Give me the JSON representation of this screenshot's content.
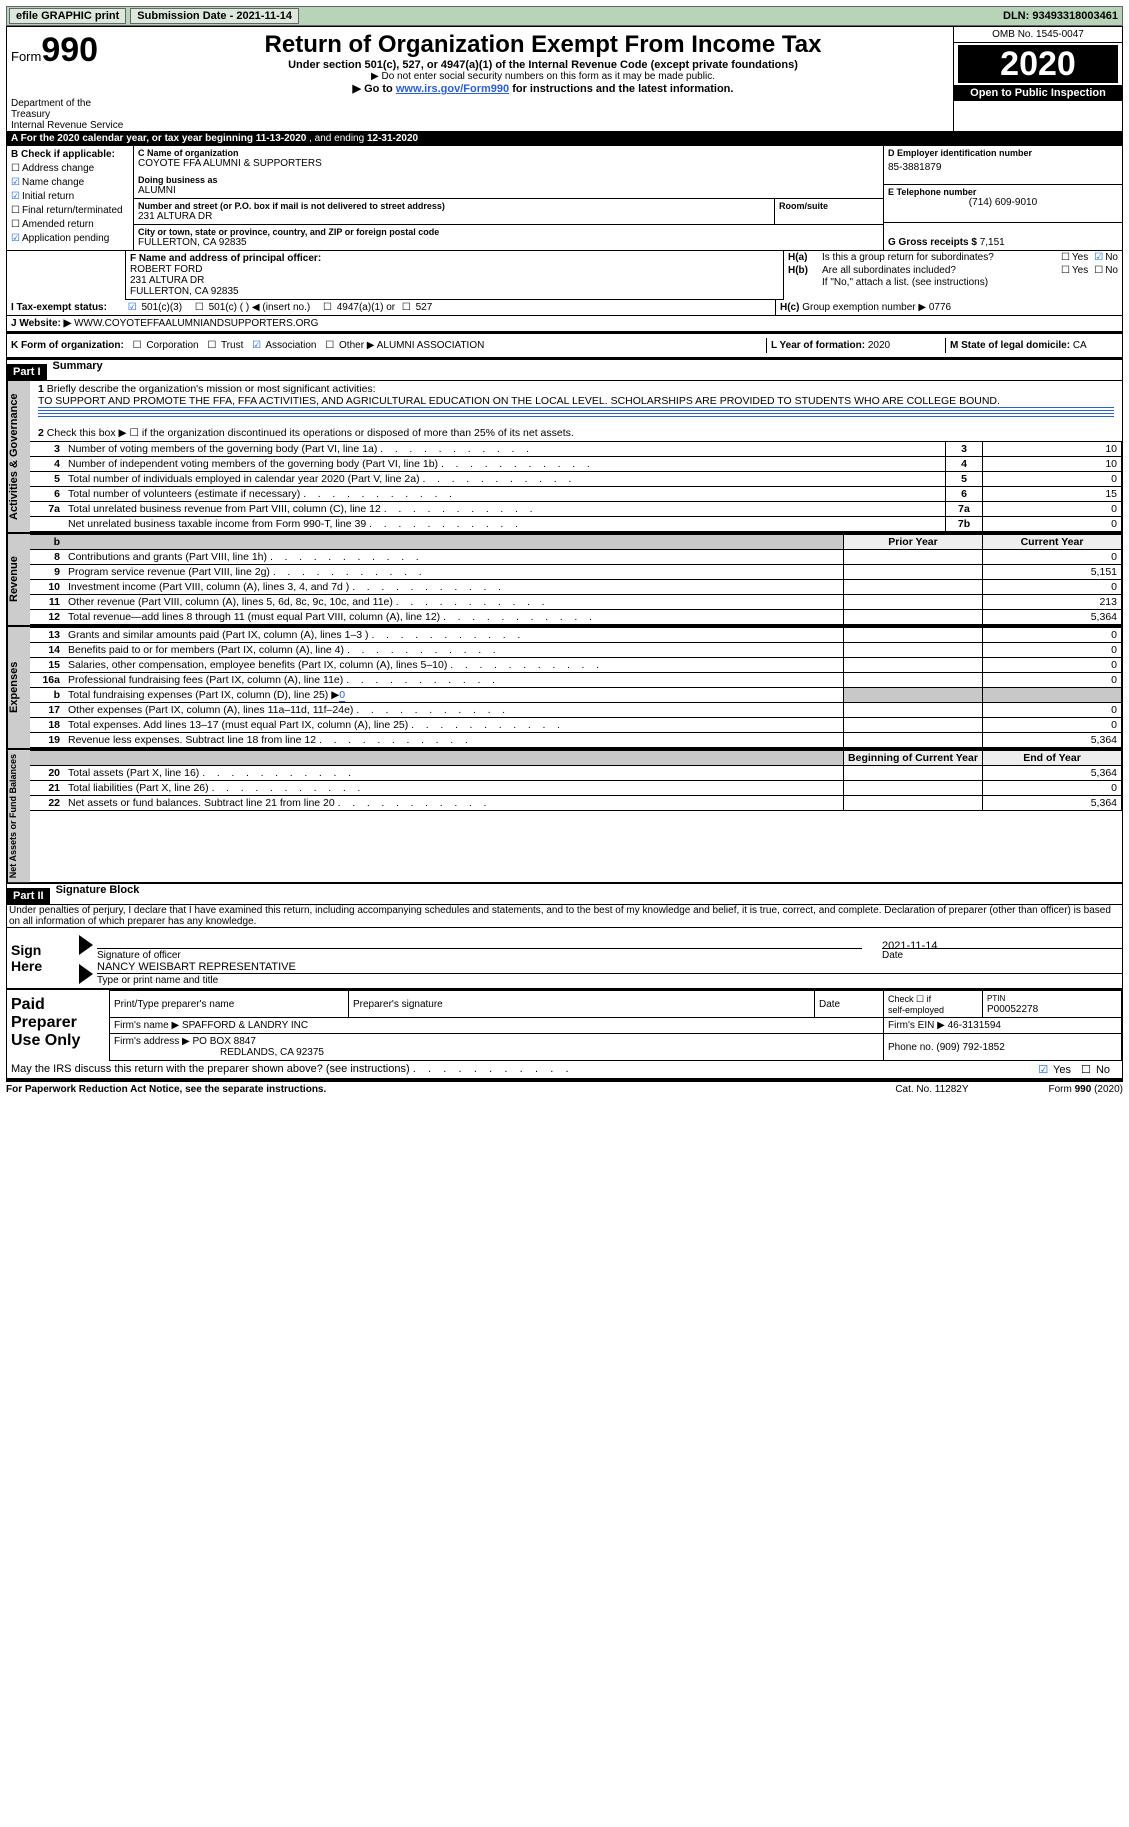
{
  "topbar": {
    "efile": "efile GRAPHIC print",
    "sub_lbl": "Submission Date - ",
    "sub_date": "2021-11-14",
    "dln_lbl": "DLN: ",
    "dln": "93493318003461"
  },
  "header": {
    "form": "Form",
    "form_no": "990",
    "dept": "Department of the Treasury",
    "irs": "Internal Revenue Service",
    "title": "Return of Organization Exempt From Income Tax",
    "sub1": "Under section 501(c), 527, or 4947(a)(1) of the Internal Revenue Code (except private foundations)",
    "sub2": "▶ Do not enter social security numbers on this form as it may be made public.",
    "sub3a": "▶ Go to ",
    "sub3_link": "www.irs.gov/Form990",
    "sub3b": " for instructions and the latest information.",
    "omb": "OMB No. 1545-0047",
    "year": "2020",
    "open": "Open to Public Inspection"
  },
  "A": {
    "text_a": "A For the 2020 calendar year, or tax year beginning ",
    "begin": "11-13-2020",
    "text_b": "    , and ending ",
    "end": "12-31-2020"
  },
  "B": {
    "hdr": "B Check if applicable:",
    "items": [
      {
        "c": false,
        "t": "Address change"
      },
      {
        "c": true,
        "t": "Name change"
      },
      {
        "c": true,
        "t": "Initial return"
      },
      {
        "c": false,
        "t": "Final return/terminated"
      },
      {
        "c": false,
        "t": "Amended return"
      },
      {
        "c": true,
        "t": "Application pending"
      }
    ]
  },
  "C": {
    "name_lbl": "C Name of organization",
    "name": "COYOTE FFA ALUMNI & SUPPORTERS",
    "dba_lbl": "Doing business as",
    "dba": "ALUMNI",
    "addr_lbl": "Number and street (or P.O. box if mail is not delivered to street address)",
    "room_lbl": "Room/suite",
    "addr": "231 ALTURA DR",
    "city_lbl": "City or town, state or province, country, and ZIP or foreign postal code",
    "city": "FULLERTON, CA  92835"
  },
  "D": {
    "lbl": "D Employer identification number",
    "val": "85-3881879"
  },
  "E": {
    "lbl": "E Telephone number",
    "val": "(714) 609-9010"
  },
  "G": {
    "lbl": "G Gross receipts $ ",
    "val": "7,151"
  },
  "F": {
    "lbl": "F  Name and address of principal officer:",
    "name": "ROBERT FORD",
    "addr1": "231 ALTURA DR",
    "addr2": "FULLERTON, CA  92835"
  },
  "H": {
    "a_lbl": "H(a)",
    "a_txt": "Is this a group return for subordinates?",
    "a_yes": "Yes",
    "a_no": "No",
    "b_lbl": "H(b)",
    "b_txt": "Are all subordinates included?",
    "b_hint": "If \"No,\" attach a list. (see instructions)",
    "c_lbl": "H(c)",
    "c_txt": "Group exemption number ▶   ",
    "c_val": "0776"
  },
  "I": {
    "lbl": "I    Tax-exempt status:",
    "o1": "501(c)(3)",
    "o2": "501(c) (  ) ◀ (insert no.)",
    "o3": "4947(a)(1) or",
    "o4": "527"
  },
  "J": {
    "lbl": "J    Website: ▶",
    "val": "  WWW.COYOTEFFAALUMNIANDSUPPORTERS.ORG"
  },
  "K": {
    "lbl": "K Form of organization:",
    "o1": "Corporation",
    "o2": "Trust",
    "o3": "Association",
    "o4": "Other ▶",
    "o4v": " ALUMNI ASSOCIATION"
  },
  "L": {
    "lbl": "L Year of formation: ",
    "val": "2020"
  },
  "M": {
    "lbl": "M State of legal domicile: ",
    "val": "CA"
  },
  "part1": {
    "hdr": "Part I",
    "title": "Summary",
    "l1_lbl": "1",
    "l1_txt": "Briefly describe the organization's mission or most significant activities:",
    "l1_val": "TO SUPPORT AND PROMOTE THE FFA, FFA ACTIVITIES, AND AGRICULTURAL EDUCATION ON THE LOCAL LEVEL. SCHOLARSHIPS ARE PROVIDED TO STUDENTS WHO ARE COLLEGE BOUND.",
    "l2": "Check this box ▶ ☐  if the organization discontinued its operations or disposed of more than 25% of its net assets.",
    "rows_ag": [
      {
        "n": "3",
        "d": "Number of voting members of the governing body (Part VI, line 1a)",
        "c": "3",
        "v": "10"
      },
      {
        "n": "4",
        "d": "Number of independent voting members of the governing body (Part VI, line 1b)",
        "c": "4",
        "v": "10"
      },
      {
        "n": "5",
        "d": "Total number of individuals employed in calendar year 2020 (Part V, line 2a)",
        "c": "5",
        "v": "0"
      },
      {
        "n": "6",
        "d": "Total number of volunteers (estimate if necessary)",
        "c": "6",
        "v": "15"
      },
      {
        "n": "7a",
        "d": "Total unrelated business revenue from Part VIII, column (C), line 12",
        "c": "7a",
        "v": "0"
      },
      {
        "n": "",
        "d": "Net unrelated business taxable income from Form 990-T, line 39",
        "c": "7b",
        "v": "0"
      }
    ],
    "col_prior": "Prior Year",
    "col_curr": "Current Year",
    "rows_rev": [
      {
        "n": "8",
        "d": "Contributions and grants (Part VIII, line 1h)",
        "p": "",
        "v": "0"
      },
      {
        "n": "9",
        "d": "Program service revenue (Part VIII, line 2g)",
        "p": "",
        "v": "5,151"
      },
      {
        "n": "10",
        "d": "Investment income (Part VIII, column (A), lines 3, 4, and 7d )",
        "p": "",
        "v": "0"
      },
      {
        "n": "11",
        "d": "Other revenue (Part VIII, column (A), lines 5, 6d, 8c, 9c, 10c, and 11e)",
        "p": "",
        "v": "213"
      },
      {
        "n": "12",
        "d": "Total revenue—add lines 8 through 11 (must equal Part VIII, column (A), line 12)",
        "p": "",
        "v": "5,364"
      }
    ],
    "rows_exp": [
      {
        "n": "13",
        "d": "Grants and similar amounts paid (Part IX, column (A), lines 1–3 )",
        "p": "",
        "v": "0"
      },
      {
        "n": "14",
        "d": "Benefits paid to or for members (Part IX, column (A), line 4)",
        "p": "",
        "v": "0"
      },
      {
        "n": "15",
        "d": "Salaries, other compensation, employee benefits (Part IX, column (A), lines 5–10)",
        "p": "",
        "v": "0"
      },
      {
        "n": "16a",
        "d": "Professional fundraising fees (Part IX, column (A), line 11e)",
        "p": "",
        "v": "0"
      }
    ],
    "l16b_n": "b",
    "l16b_d": "Total fundraising expenses (Part IX, column (D), line 25) ▶",
    "l16b_v": "0",
    "rows_exp2": [
      {
        "n": "17",
        "d": "Other expenses (Part IX, column (A), lines 11a–11d, 11f–24e)",
        "p": "",
        "v": "0"
      },
      {
        "n": "18",
        "d": "Total expenses. Add lines 13–17 (must equal Part IX, column (A), line 25)",
        "p": "",
        "v": "0"
      },
      {
        "n": "19",
        "d": "Revenue less expenses. Subtract line 18 from line 12",
        "p": "",
        "v": "5,364"
      }
    ],
    "col_begin": "Beginning of Current Year",
    "col_end": "End of Year",
    "rows_na": [
      {
        "n": "20",
        "d": "Total assets (Part X, line 16)",
        "p": "",
        "v": "5,364"
      },
      {
        "n": "21",
        "d": "Total liabilities (Part X, line 26)",
        "p": "",
        "v": "0"
      },
      {
        "n": "22",
        "d": "Net assets or fund balances. Subtract line 21 from line 20",
        "p": "",
        "v": "5,364"
      }
    ]
  },
  "vtabs": {
    "ag": "Activities & Governance",
    "rev": "Revenue",
    "exp": "Expenses",
    "na": "Net Assets or Fund Balances"
  },
  "part2": {
    "hdr": "Part II",
    "title": "Signature Block",
    "decl": "Under penalties of perjury, I declare that I have examined this return, including accompanying schedules and statements, and to the best of my knowledge and belief, it is true, correct, and complete. Declaration of preparer (other than officer) is based on all information of which preparer has any knowledge."
  },
  "sign": {
    "here": "Sign Here",
    "sig_lbl": "Signature of officer",
    "date_lbl": "Date",
    "date": "2021-11-14",
    "name": "NANCY WEISBART REPRESENTATIVE",
    "name_lbl": "Type or print name and title"
  },
  "prep": {
    "title": "Paid Preparer Use Only",
    "h1": "Print/Type preparer's name",
    "h2": "Preparer's signature",
    "h3": "Date",
    "h4a": "Check ☐ if",
    "h4b": "self-employed",
    "h5_lbl": "PTIN",
    "h5": "P00052278",
    "firm_lbl": "Firm's name    ▶ ",
    "firm": "SPAFFORD & LANDRY INC",
    "ein_lbl": "Firm's EIN ▶ ",
    "ein": "46-3131594",
    "addr_lbl": "Firm's address ▶ ",
    "addr1": "PO BOX 8847",
    "addr2": "REDLANDS, CA  92375",
    "phone_lbl": "Phone no. ",
    "phone": "(909) 792-1852"
  },
  "may": {
    "txt": "May the IRS discuss this return with the preparer shown above? (see instructions)",
    "yes": "Yes",
    "no": "No"
  },
  "footer": {
    "l": "For Paperwork Reduction Act Notice, see the separate instructions.",
    "m": "Cat. No. 11282Y",
    "r": "Form 990 (2020)"
  },
  "colors": {
    "link": "#2b5fd0",
    "check": "#1060d0",
    "topbar_bg": "#b8d4b8"
  }
}
